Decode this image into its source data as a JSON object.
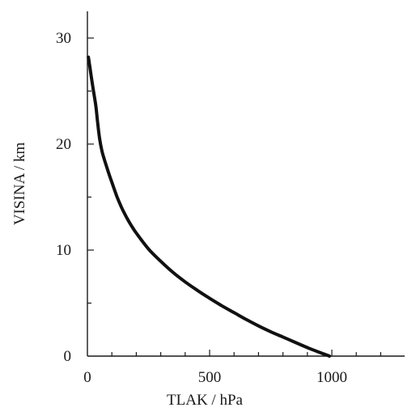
{
  "chart_data": {
    "type": "line",
    "xlabel": "TLAK / hPa",
    "ylabel": "VISINA / km",
    "xlim": [
      0,
      1250
    ],
    "ylim": [
      0,
      32
    ],
    "x_ticks": [
      0,
      500,
      1000
    ],
    "x_tick_labels": [
      "0",
      "500",
      "1000"
    ],
    "x_minor_step": 100,
    "y_ticks": [
      0,
      10,
      20,
      30
    ],
    "y_tick_labels": [
      "0",
      "10",
      "20",
      "30"
    ],
    "y_minor_step": 5,
    "grid": false,
    "series": [
      {
        "x": [
          990,
          950,
          900,
          850,
          800,
          750,
          700,
          650,
          600,
          550,
          500,
          450,
          400,
          350,
          300,
          250,
          200,
          180,
          160,
          140,
          120,
          100,
          85,
          70,
          60,
          50,
          42,
          35,
          25,
          15,
          8,
          4
        ],
        "y": [
          0,
          0.35,
          0.8,
          1.3,
          1.8,
          2.3,
          2.85,
          3.45,
          4.1,
          4.75,
          5.45,
          6.2,
          7.0,
          7.9,
          8.95,
          10.1,
          11.6,
          12.3,
          13.1,
          14.0,
          15.1,
          16.4,
          17.4,
          18.5,
          19.3,
          20.5,
          22.0,
          23.5,
          25.0,
          26.5,
          27.6,
          28.2
        ],
        "color": "#111111"
      }
    ]
  }
}
